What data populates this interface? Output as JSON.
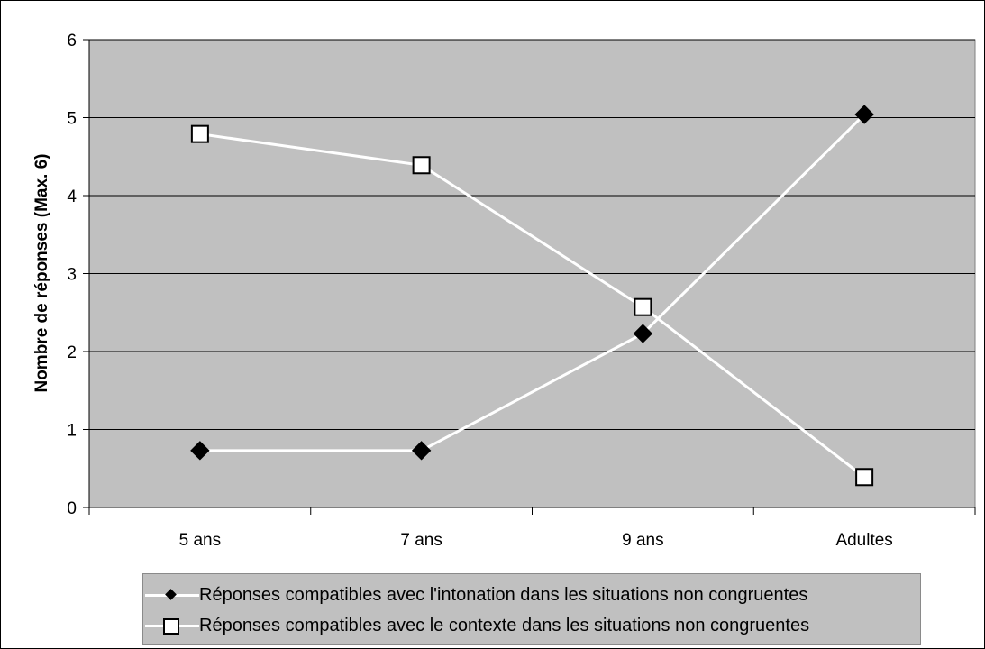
{
  "chart_data": {
    "type": "line",
    "title": "",
    "xlabel": "",
    "ylabel": "Nombre de réponses (Max. 6)",
    "ylim": [
      0,
      6
    ],
    "yticks": [
      "0",
      "1",
      "2",
      "3",
      "4",
      "5",
      "6"
    ],
    "categories": [
      "5 ans",
      "7 ans",
      "9 ans",
      "Adultes"
    ],
    "grid": true,
    "legend_position": "bottom",
    "series": [
      {
        "name": "Réponses compatibles avec l'intonation dans les situations non congruentes",
        "marker": "diamond",
        "values": [
          0.73,
          0.73,
          2.23,
          5.04
        ]
      },
      {
        "name": "Réponses compatibles avec le contexte dans les situations non congruentes",
        "marker": "square",
        "values": [
          4.79,
          4.39,
          2.57,
          0.39
        ]
      }
    ],
    "colors": {
      "plot_background": "#c0c0c0",
      "line": "#ffffff",
      "diamond_fill": "#000000",
      "square_fill": "#ffffff"
    }
  }
}
